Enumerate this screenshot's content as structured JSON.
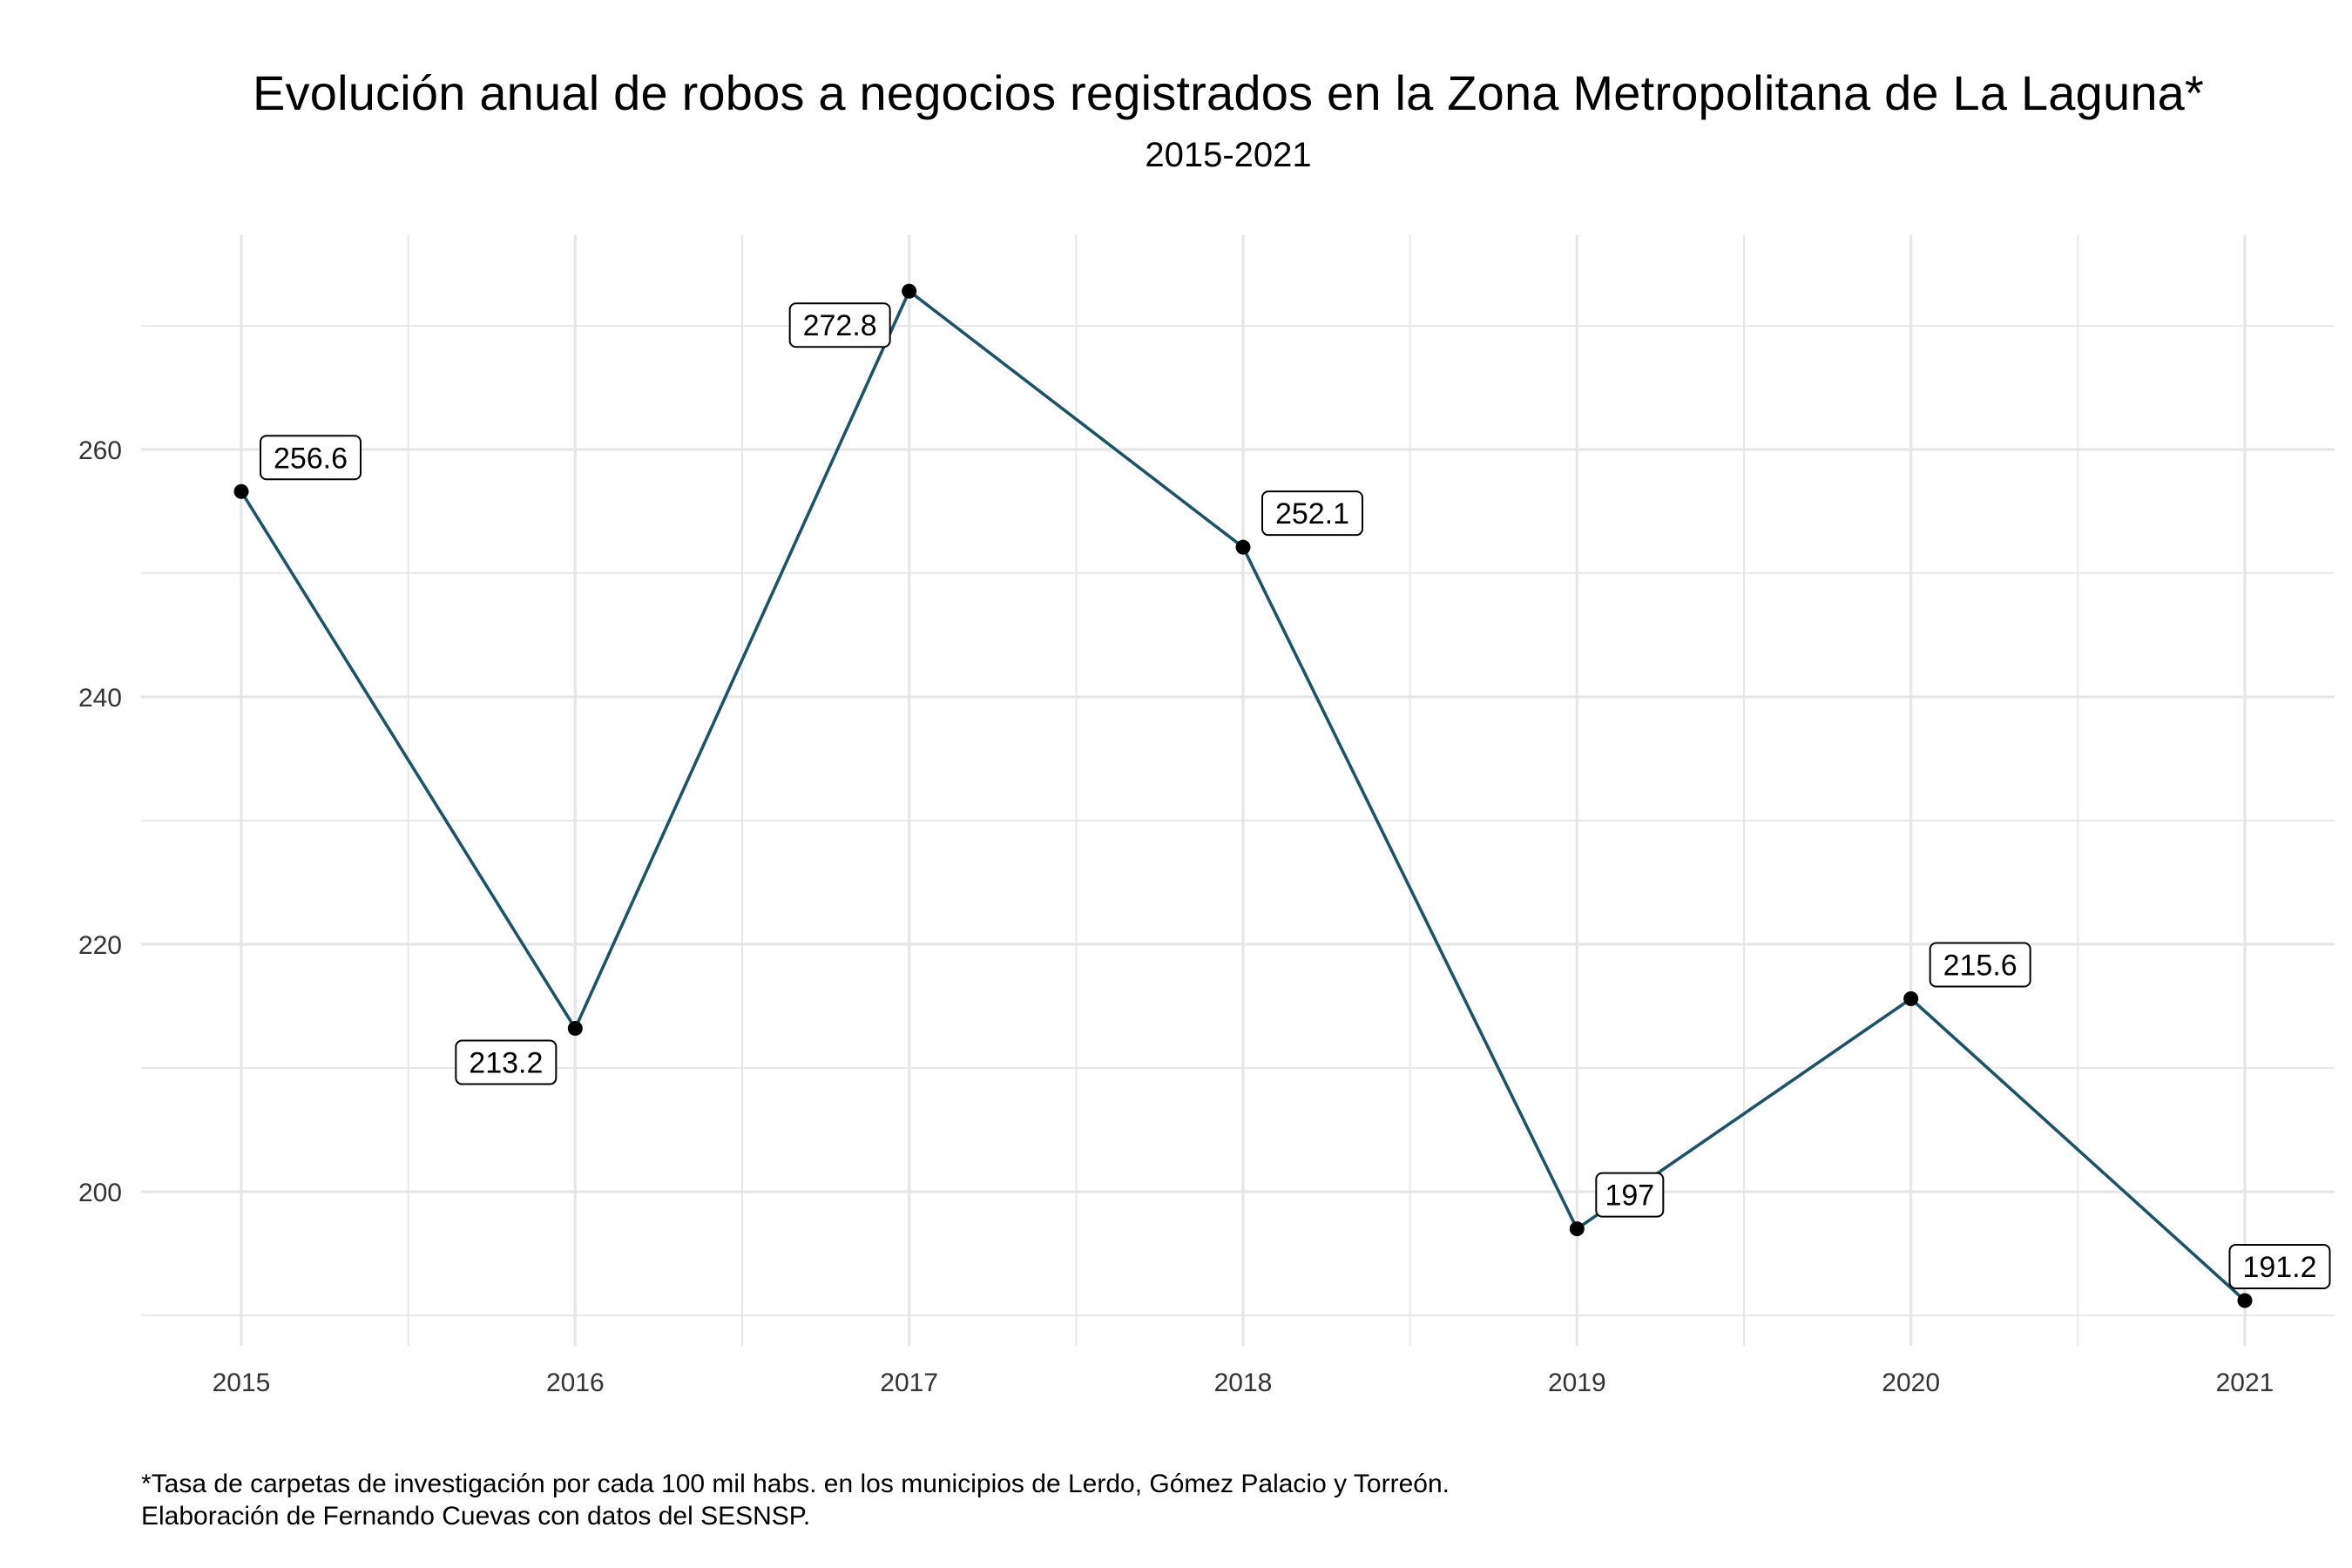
{
  "chart_data": {
    "type": "line",
    "title": "Evolución anual de robos a negocios registrados en la Zona Metropolitana de La Laguna*",
    "subtitle": "2015-2021",
    "xlabel": "",
    "ylabel": "",
    "x": [
      "2015",
      "2016",
      "2017",
      "2018",
      "2019",
      "2020",
      "2021"
    ],
    "series": [
      {
        "values": [
          256.6,
          213.2,
          272.8,
          252.1,
          197,
          215.6,
          191.2
        ]
      }
    ],
    "data_labels": [
      "256.6",
      "213.2",
      "272.8",
      "252.1",
      "197",
      "215.6",
      "191.2"
    ],
    "y_ticks": [
      200,
      220,
      240,
      260
    ],
    "ylim": [
      187,
      277
    ],
    "grid": true,
    "legend": "none",
    "colors": {
      "line": "#1e5366",
      "point": "#000000",
      "grid": "#e6e6e6"
    }
  },
  "caption": {
    "line1": "*Tasa de carpetas de investigación por cada 100 mil habs. en los municipios de Lerdo, Gómez Palacio y Torreón.",
    "line2": "Elaboración de Fernando Cuevas con datos del SESNSP."
  }
}
